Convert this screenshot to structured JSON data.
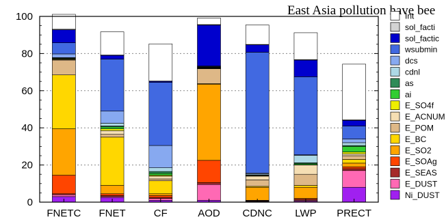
{
  "chart_data": {
    "type": "bar",
    "stacked": true,
    "title": "East Asia pollution have bee",
    "xlabel": "",
    "ylabel": "",
    "ylim": [
      0,
      100
    ],
    "yticks": [
      0,
      20,
      40,
      60,
      80,
      100
    ],
    "grid": "dashed horizontal at y = 20, 40, 60, 80",
    "legend_position": "right",
    "categories": [
      "FNETC",
      "FNET",
      "CF",
      "AOD",
      "CDNC",
      "LWP",
      "PRECT"
    ],
    "series": [
      {
        "name": "Ni_DUST",
        "color": "#a020f0",
        "values": [
          3,
          2.5,
          1,
          1,
          0.3,
          0.5,
          8
        ]
      },
      {
        "name": "E_DUST",
        "color": "#ff69b4",
        "values": [
          1,
          0.5,
          1,
          8.5,
          0.3,
          0.5,
          9
        ]
      },
      {
        "name": "E_SEAS",
        "color": "#a52a2a",
        "values": [
          0.5,
          0.5,
          0.5,
          1,
          0.2,
          0.5,
          1
        ]
      },
      {
        "name": "E_SOAg",
        "color": "#ff4500",
        "values": [
          10,
          1,
          1,
          12,
          0.2,
          0.5,
          1
        ]
      },
      {
        "name": "E_SO2",
        "color": "#ffa500",
        "values": [
          25,
          4.5,
          1,
          41,
          7,
          6,
          2
        ]
      },
      {
        "name": "E_BC",
        "color": "#ffd700",
        "values": [
          29,
          26,
          7,
          0.3,
          0.5,
          1,
          2
        ]
      },
      {
        "name": "E_POM",
        "color": "#deb887",
        "values": [
          8,
          1.5,
          1,
          8,
          3.5,
          6,
          2
        ]
      },
      {
        "name": "E_ACNUM",
        "color": "#f5deb3",
        "values": [
          0.3,
          2,
          1.5,
          0.2,
          2,
          5,
          1
        ]
      },
      {
        "name": "E_SO4f",
        "color": "#eeee00",
        "values": [
          0.3,
          1,
          0.5,
          0.2,
          0.3,
          0.2,
          1
        ]
      },
      {
        "name": "ai",
        "color": "#32cd32",
        "values": [
          0.3,
          1,
          1,
          0.2,
          0.2,
          0.5,
          3
        ]
      },
      {
        "name": "as",
        "color": "#2e8b57",
        "values": [
          0.2,
          0.5,
          1,
          0.2,
          0.2,
          0.5,
          0.5
        ]
      },
      {
        "name": "cdnl",
        "color": "#add8e6",
        "values": [
          0.2,
          1.5,
          2,
          0.2,
          0.5,
          4,
          1.5
        ]
      },
      {
        "name": "dcs",
        "color": "#87a9f0",
        "values": [
          2,
          6.5,
          12,
          0.2,
          0.5,
          0.3,
          2
        ]
      },
      {
        "name": "wsubmin",
        "color": "#4169e1",
        "values": [
          6,
          28,
          34,
          0.3,
          65,
          42,
          7
        ]
      },
      {
        "name": "sol_factic",
        "color": "#0000cd",
        "values": [
          7,
          2,
          0.5,
          22,
          4,
          9,
          3
        ]
      },
      {
        "name": "sol_facti",
        "color": "#d3d3d3",
        "values": [
          0.3,
          0.2,
          0.2,
          0.3,
          0.2,
          0.2,
          0.3
        ]
      },
      {
        "name": "Int",
        "color": "#ffffff",
        "values": [
          8,
          12.5,
          20,
          3.5,
          10.5,
          14.5,
          30
        ]
      }
    ]
  }
}
